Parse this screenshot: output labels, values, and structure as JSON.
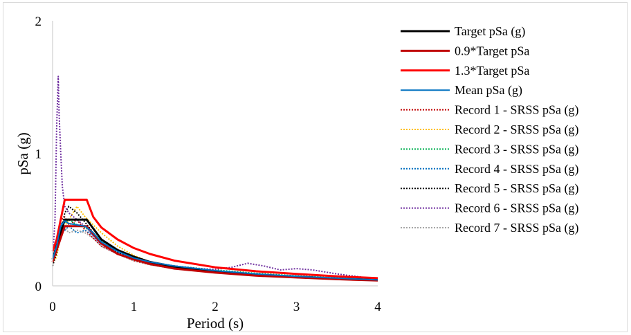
{
  "chart_data": {
    "type": "line",
    "title": "",
    "xlabel": "Period (s)",
    "ylabel": "pSa (g)",
    "xlim": [
      0,
      4
    ],
    "ylim": [
      0,
      2
    ],
    "x_ticks": [
      "0",
      "1",
      "2",
      "3",
      "4"
    ],
    "y_ticks": [
      "0",
      "1",
      "2"
    ],
    "grid": false,
    "legend_position": "right",
    "series": [
      {
        "name": "Target pSa (g)",
        "color": "#000000",
        "style": "solid",
        "width": 3,
        "x": [
          0,
          0.15,
          0.42,
          0.6,
          0.8,
          1.0,
          1.2,
          1.5,
          2.0,
          2.5,
          3.0,
          3.5,
          4.0
        ],
        "y": [
          0.2,
          0.5,
          0.5,
          0.35,
          0.27,
          0.22,
          0.18,
          0.145,
          0.11,
          0.085,
          0.07,
          0.055,
          0.045
        ]
      },
      {
        "name": "0.9*Target pSa",
        "color": "#c00000",
        "style": "solid",
        "width": 3,
        "x": [
          0,
          0.15,
          0.42,
          0.6,
          0.8,
          1.0,
          1.2,
          1.5,
          2.0,
          2.5,
          3.0,
          3.5,
          4.0
        ],
        "y": [
          0.18,
          0.45,
          0.45,
          0.32,
          0.24,
          0.2,
          0.165,
          0.13,
          0.1,
          0.077,
          0.063,
          0.05,
          0.04
        ]
      },
      {
        "name": "1.3*Target pSa",
        "color": "#ff0000",
        "style": "solid",
        "width": 3,
        "x": [
          0,
          0.05,
          0.15,
          0.42,
          0.5,
          0.6,
          0.8,
          1.0,
          1.2,
          1.5,
          2.0,
          2.5,
          3.0,
          3.5,
          4.0
        ],
        "y": [
          0.26,
          0.35,
          0.65,
          0.65,
          0.52,
          0.44,
          0.35,
          0.285,
          0.24,
          0.19,
          0.14,
          0.11,
          0.09,
          0.072,
          0.058
        ]
      },
      {
        "name": "Mean pSa (g)",
        "color": "#0070c0",
        "style": "solid",
        "width": 2,
        "x": [
          0,
          0.05,
          0.1,
          0.15,
          0.2,
          0.3,
          0.4,
          0.5,
          0.6,
          0.8,
          1.0,
          1.2,
          1.5,
          2.0,
          2.5,
          3.0,
          3.5,
          4.0
        ],
        "y": [
          0.2,
          0.3,
          0.45,
          0.49,
          0.47,
          0.46,
          0.45,
          0.4,
          0.33,
          0.26,
          0.21,
          0.18,
          0.15,
          0.115,
          0.09,
          0.072,
          0.058,
          0.045
        ]
      },
      {
        "name": "Record 1 - SRSS pSa (g)",
        "color": "#c00000",
        "style": "dotted",
        "width": 2,
        "x": [
          0,
          0.05,
          0.1,
          0.15,
          0.2,
          0.3,
          0.4,
          0.5,
          0.6,
          0.8,
          1.0,
          1.2,
          1.5,
          2.0,
          2.5,
          3.0,
          3.5,
          4.0
        ],
        "y": [
          0.18,
          0.28,
          0.5,
          0.52,
          0.46,
          0.5,
          0.42,
          0.36,
          0.3,
          0.24,
          0.19,
          0.16,
          0.13,
          0.1,
          0.08,
          0.065,
          0.05,
          0.04
        ]
      },
      {
        "name": "Record 2 - SRSS pSa (g)",
        "color": "#ffc000",
        "style": "dotted",
        "width": 2,
        "x": [
          0,
          0.05,
          0.1,
          0.15,
          0.2,
          0.3,
          0.4,
          0.5,
          0.6,
          0.8,
          1.0,
          1.2,
          1.5,
          2.0,
          2.5,
          3.0,
          3.5,
          4.0
        ],
        "y": [
          0.17,
          0.22,
          0.38,
          0.45,
          0.5,
          0.6,
          0.52,
          0.46,
          0.4,
          0.3,
          0.23,
          0.18,
          0.14,
          0.11,
          0.085,
          0.07,
          0.055,
          0.045
        ]
      },
      {
        "name": "Record 3 - SRSS pSa (g)",
        "color": "#00b050",
        "style": "dotted",
        "width": 2,
        "x": [
          0,
          0.05,
          0.1,
          0.15,
          0.2,
          0.3,
          0.4,
          0.5,
          0.6,
          0.8,
          1.0,
          1.2,
          1.5,
          2.0,
          2.5,
          3.0,
          3.5,
          4.0
        ],
        "y": [
          0.2,
          0.3,
          0.42,
          0.48,
          0.5,
          0.46,
          0.44,
          0.4,
          0.34,
          0.27,
          0.22,
          0.18,
          0.15,
          0.12,
          0.095,
          0.075,
          0.06,
          0.05
        ]
      },
      {
        "name": "Record 4 - SRSS pSa (g)",
        "color": "#0070c0",
        "style": "dotted",
        "width": 2,
        "x": [
          0,
          0.05,
          0.1,
          0.15,
          0.2,
          0.3,
          0.4,
          0.5,
          0.6,
          0.8,
          1.0,
          1.2,
          1.5,
          2.0,
          2.5,
          3.0,
          3.5,
          4.0
        ],
        "y": [
          0.22,
          0.35,
          0.48,
          0.42,
          0.45,
          0.4,
          0.42,
          0.38,
          0.32,
          0.25,
          0.2,
          0.17,
          0.14,
          0.11,
          0.088,
          0.07,
          0.056,
          0.045
        ]
      },
      {
        "name": "Record 5 - SRSS pSa (g)",
        "color": "#000000",
        "style": "dotted",
        "width": 2,
        "x": [
          0,
          0.05,
          0.1,
          0.15,
          0.2,
          0.3,
          0.4,
          0.5,
          0.6,
          0.8,
          1.0,
          1.2,
          1.5,
          2.0,
          2.5,
          3.0,
          3.5,
          4.0
        ],
        "y": [
          0.15,
          0.25,
          0.4,
          0.55,
          0.6,
          0.55,
          0.48,
          0.4,
          0.32,
          0.25,
          0.2,
          0.16,
          0.13,
          0.1,
          0.078,
          0.062,
          0.05,
          0.04
        ]
      },
      {
        "name": "Record 6 - SRSS pSa (g)",
        "color": "#7030a0",
        "style": "dotted",
        "width": 2,
        "x": [
          0,
          0.03,
          0.05,
          0.07,
          0.08,
          0.1,
          0.12,
          0.15,
          0.2,
          0.3,
          0.4,
          0.5,
          0.6,
          0.8,
          1.0,
          1.2,
          1.5,
          1.8,
          2.0,
          2.2,
          2.4,
          2.6,
          2.8,
          3.0,
          3.2,
          3.5,
          4.0
        ],
        "y": [
          0.2,
          0.5,
          1.2,
          1.58,
          1.3,
          1.0,
          0.75,
          0.6,
          0.55,
          0.5,
          0.45,
          0.38,
          0.3,
          0.24,
          0.21,
          0.18,
          0.15,
          0.13,
          0.125,
          0.14,
          0.17,
          0.15,
          0.12,
          0.13,
          0.12,
          0.09,
          0.05
        ]
      },
      {
        "name": "Record 7 - SRSS pSa (g)",
        "color": "#a6a6a6",
        "style": "dotted",
        "width": 2,
        "x": [
          0,
          0.05,
          0.1,
          0.15,
          0.2,
          0.3,
          0.4,
          0.5,
          0.6,
          0.8,
          1.0,
          1.2,
          1.5,
          2.0,
          2.5,
          3.0,
          3.5,
          4.0
        ],
        "y": [
          0.2,
          0.32,
          0.46,
          0.44,
          0.4,
          0.42,
          0.4,
          0.36,
          0.3,
          0.24,
          0.19,
          0.16,
          0.13,
          0.1,
          0.08,
          0.065,
          0.052,
          0.042
        ]
      }
    ]
  }
}
